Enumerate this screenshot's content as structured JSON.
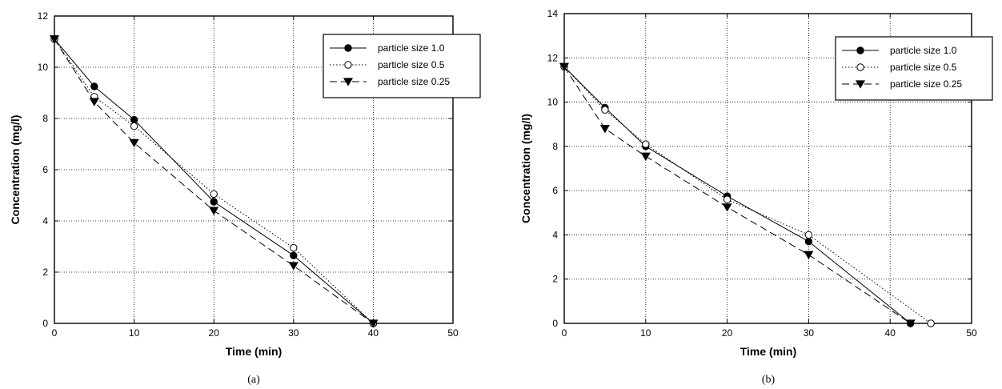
{
  "chart_data": [
    {
      "type": "line",
      "caption": "(a)",
      "xlabel": "Time (min)",
      "ylabel": "Concentration (mg/l)",
      "xlim": [
        0,
        50
      ],
      "ylim": [
        0,
        12
      ],
      "xticks": [
        0,
        10,
        20,
        30,
        40,
        50
      ],
      "yticks": [
        0,
        2,
        4,
        6,
        8,
        10,
        12
      ],
      "grid": true,
      "legend_position": "top-right",
      "series": [
        {
          "name": "particle size 1.0",
          "marker": "filled-circle",
          "line": "solid",
          "x": [
            0,
            5,
            10,
            20,
            30,
            40
          ],
          "y": [
            11.1,
            9.25,
            7.95,
            4.75,
            2.65,
            0.0
          ]
        },
        {
          "name": "particle size 0.5",
          "marker": "open-circle",
          "line": "dotted",
          "x": [
            0,
            5,
            10,
            20,
            30,
            40
          ],
          "y": [
            11.1,
            8.85,
            7.7,
            5.05,
            2.95,
            0.0
          ]
        },
        {
          "name": "particle size 0.25",
          "marker": "filled-triangle-down",
          "line": "dashed",
          "x": [
            0,
            5,
            10,
            20,
            30,
            40
          ],
          "y": [
            11.1,
            8.65,
            7.05,
            4.4,
            2.25,
            0.0
          ]
        }
      ]
    },
    {
      "type": "line",
      "caption": "(b)",
      "xlabel": "Time (min)",
      "ylabel": "Concentration (mg/l)",
      "xlim": [
        0,
        50
      ],
      "ylim": [
        0,
        14
      ],
      "xticks": [
        0,
        10,
        20,
        30,
        40,
        50
      ],
      "yticks": [
        0,
        2,
        4,
        6,
        8,
        10,
        12,
        14
      ],
      "grid": true,
      "legend_position": "top-right",
      "series": [
        {
          "name": "particle size 1.0",
          "marker": "filled-circle",
          "line": "solid",
          "x": [
            0,
            5,
            10,
            20,
            30,
            42.5
          ],
          "y": [
            11.6,
            9.75,
            8.0,
            5.75,
            3.7,
            0.0
          ]
        },
        {
          "name": "particle size 0.5",
          "marker": "open-circle",
          "line": "dotted",
          "x": [
            0,
            5,
            10,
            20,
            30,
            45
          ],
          "y": [
            11.6,
            9.65,
            8.1,
            5.6,
            4.0,
            0.0
          ]
        },
        {
          "name": "particle size 0.25",
          "marker": "filled-triangle-down",
          "line": "dashed",
          "x": [
            0,
            5,
            10,
            20,
            30,
            42.5
          ],
          "y": [
            11.6,
            8.8,
            7.55,
            5.25,
            3.1,
            0.0
          ]
        }
      ]
    }
  ]
}
